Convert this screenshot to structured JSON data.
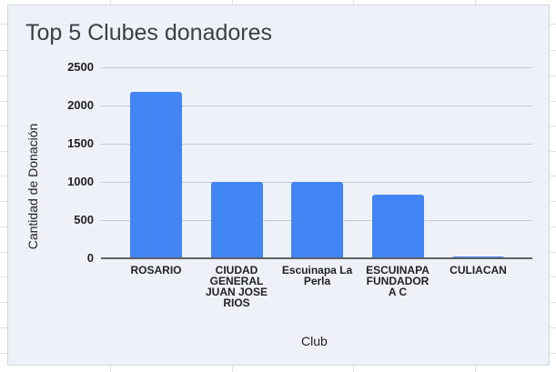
{
  "chart_data": {
    "type": "bar",
    "title": "Top 5 Clubes donadores",
    "xlabel": "Club",
    "ylabel": "Cantidad de Donación",
    "categories": [
      "ROSARIO",
      "CIUDAD GENERAL JUAN JOSE RIOS",
      "Escuinapa La Perla",
      "ESCUINAPA FUNDADOR A C",
      "CULIACAN"
    ],
    "category_label_lines": [
      [
        "ROSARIO"
      ],
      [
        "CIUDAD",
        "GENERAL",
        "JUAN JOSE",
        "RIOS"
      ],
      [
        "Escuinapa La",
        "Perla"
      ],
      [
        "ESCUINAPA",
        "FUNDADOR",
        "A C"
      ],
      [
        "CULIACAN"
      ]
    ],
    "values": [
      2180,
      1000,
      1000,
      830,
      20
    ],
    "ylim": [
      0,
      2500
    ],
    "yticks": [
      "0",
      "500",
      "1000",
      "1500",
      "2000",
      "2500"
    ],
    "grid": true,
    "legend": "none",
    "bar_color": "#4285f4"
  },
  "panel": {
    "background": "#eef2f8"
  }
}
